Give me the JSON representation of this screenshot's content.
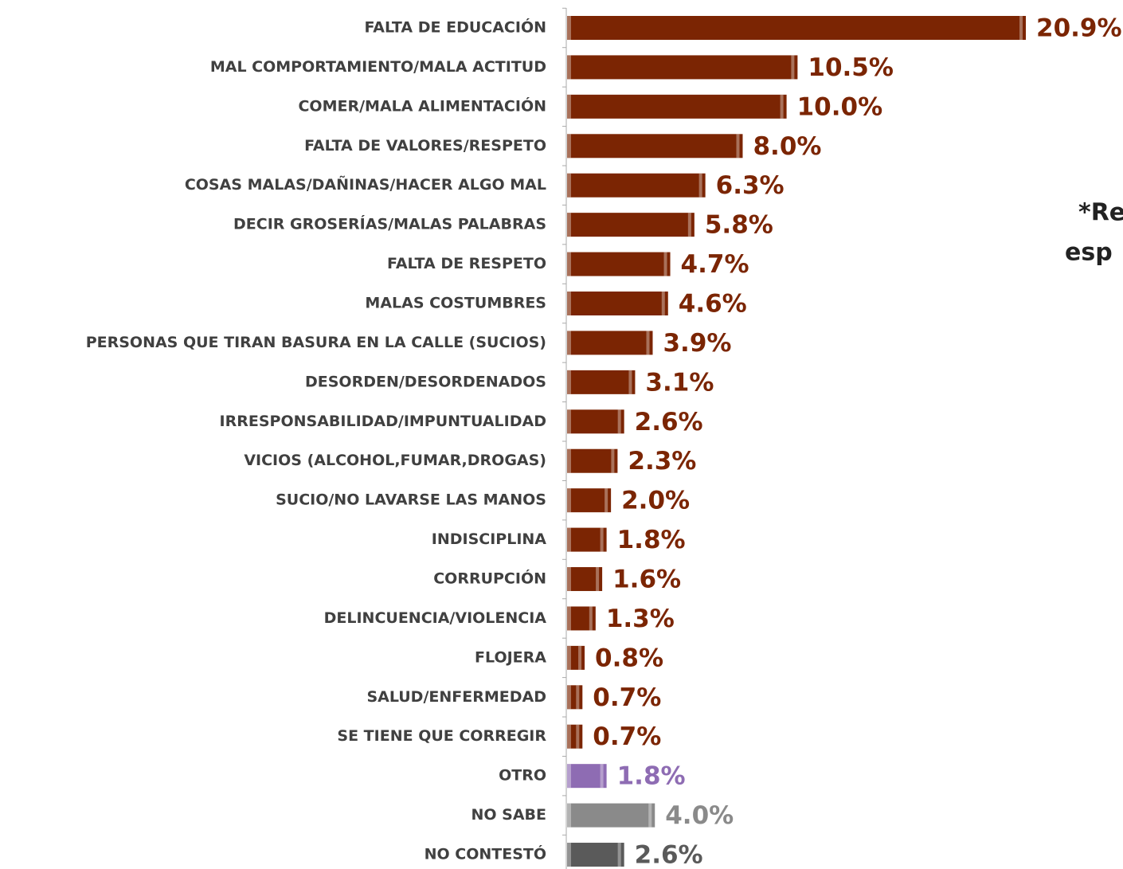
{
  "chart_data": {
    "type": "barh",
    "categories": [
      "FALTA DE EDUCACIÓN",
      "MAL COMPORTAMIENTO/MALA ACTITUD",
      "COMER/MALA ALIMENTACIÓN",
      "FALTA DE VALORES/RESPETO",
      "COSAS MALAS/DAÑINAS/HACER ALGO MAL",
      "DECIR GROSERÍAS/MALAS PALABRAS",
      "FALTA DE RESPETO",
      "MALAS COSTUMBRES",
      "PERSONAS QUE TIRAN BASURA EN LA CALLE (SUCIOS)",
      "DESORDEN/DESORDENADOS",
      "IRRESPONSABILIDAD/IMPUNTUALIDAD",
      "VICIOS (ALCOHOL,FUMAR,DROGAS)",
      "SUCIO/NO LAVARSE LAS MANOS",
      "INDISCIPLINA",
      "CORRUPCIÓN",
      "DELINCUENCIA/VIOLENCIA",
      "FLOJERA",
      "SALUD/ENFERMEDAD",
      "SE TIENE QUE CORREGIR",
      "OTRO",
      "NO SABE",
      "NO CONTESTÓ"
    ],
    "values": [
      20.9,
      10.5,
      10.0,
      8.0,
      6.3,
      5.8,
      4.7,
      4.6,
      3.9,
      3.1,
      2.6,
      2.3,
      2.0,
      1.8,
      1.6,
      1.3,
      0.8,
      0.7,
      0.7,
      1.8,
      4.0,
      2.6
    ],
    "value_labels": [
      "20.9%",
      "10.5%",
      "10.0%",
      "8.0%",
      "6.3%",
      "5.8%",
      "4.7%",
      "4.6%",
      "3.9%",
      "3.1%",
      "2.6%",
      "2.3%",
      "2.0%",
      "1.8%",
      "1.6%",
      "1.3%",
      "0.8%",
      "0.7%",
      "0.7%",
      "1.8%",
      "4.0%",
      "2.6%"
    ],
    "colors": [
      "#7b2503",
      "#7b2503",
      "#7b2503",
      "#7b2503",
      "#7b2503",
      "#7b2503",
      "#7b2503",
      "#7b2503",
      "#7b2503",
      "#7b2503",
      "#7b2503",
      "#7b2503",
      "#7b2503",
      "#7b2503",
      "#7b2503",
      "#7b2503",
      "#7b2503",
      "#7b2503",
      "#7b2503",
      "#8e6cb3",
      "#8a8a8a",
      "#5a5a5a"
    ],
    "annotations": [
      "*Re",
      "esp"
    ]
  }
}
